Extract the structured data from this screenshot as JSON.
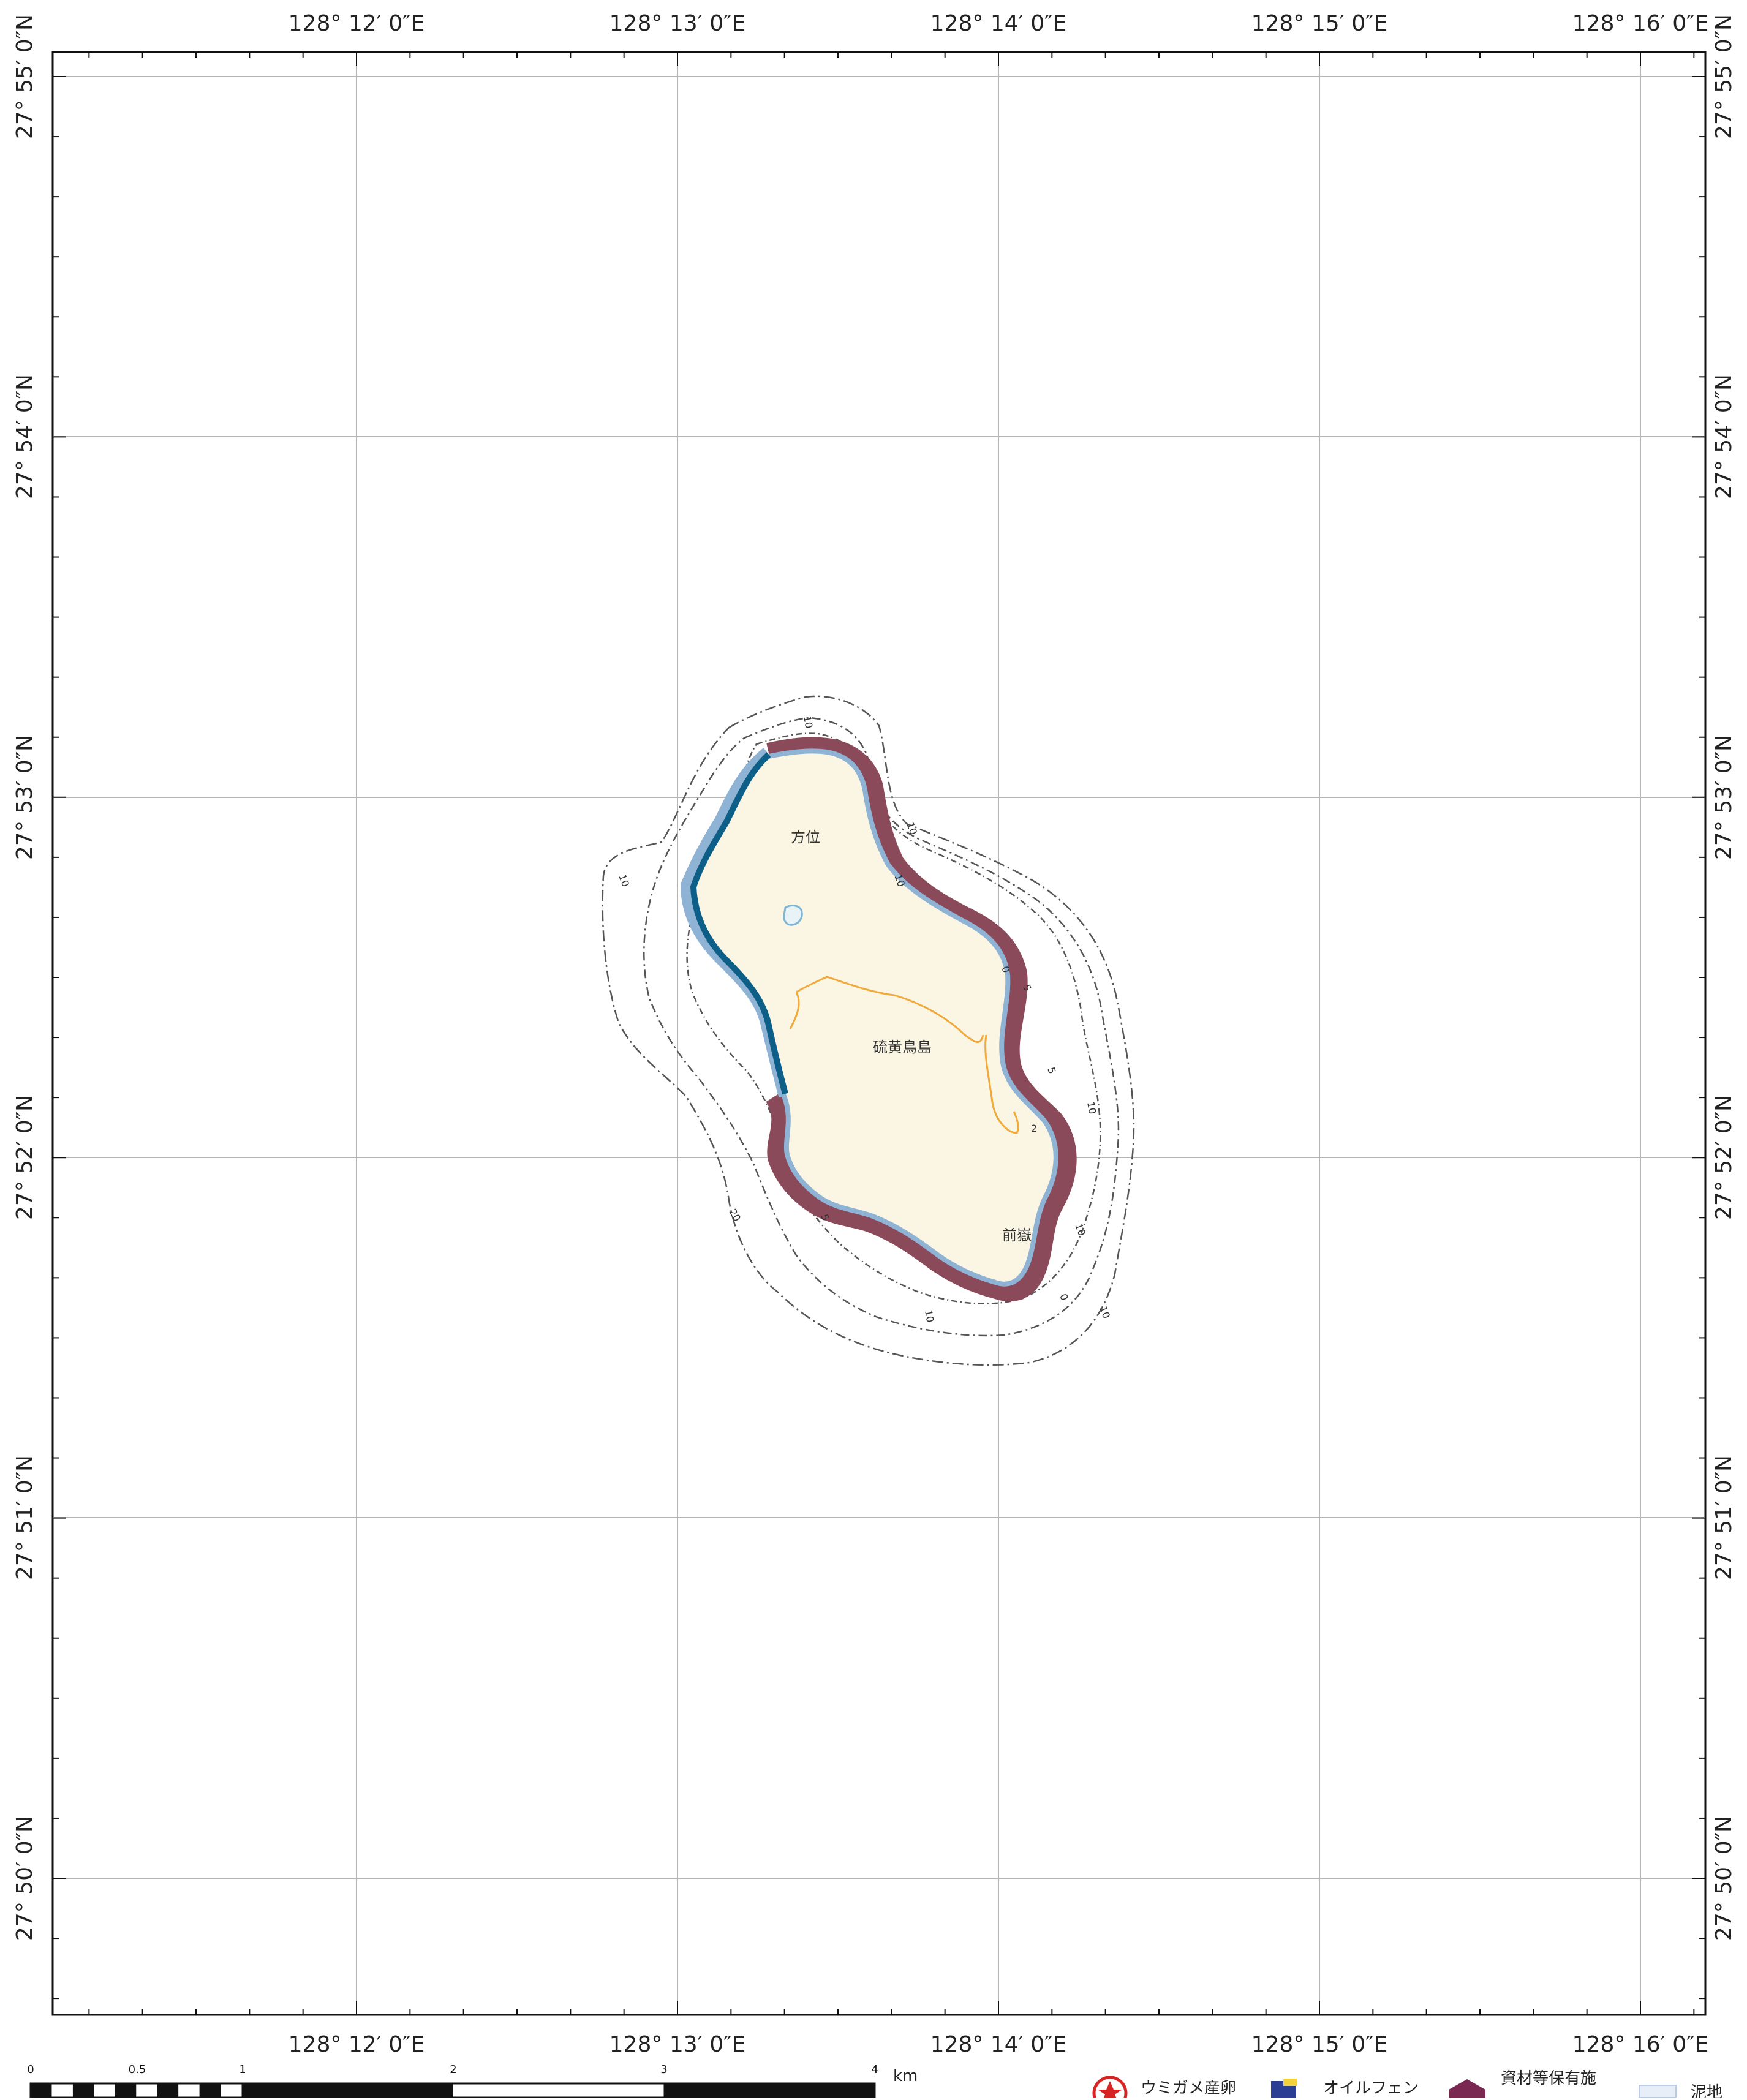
{
  "map": {
    "lon_labels": [
      "128°  12′ 0″E",
      "128°  13′ 0″E",
      "128°  14′ 0″E",
      "128°  15′ 0″E",
      "128°  16′ 0″E"
    ],
    "lat_labels": [
      "27°  55′ 0″N",
      "27°  54′ 0″N",
      "27°  53′ 0″N",
      "27°  52′ 0″N",
      "27°  51′ 0″N",
      "27°  50′ 0″N"
    ],
    "places": {
      "north": "方位",
      "island": "硫黄鳥島",
      "peak": "前嶽"
    },
    "contours": [
      "10",
      "10",
      "10",
      "10",
      "5",
      "5",
      "5",
      "20",
      "10",
      "10",
      "10",
      "10",
      "0",
      "0",
      "2"
    ],
    "colors": {
      "land": "#faf6e3",
      "coast_band": "#8b4a5a",
      "shore_blue": "#8fb3d4",
      "cliff": "#0d5f87",
      "road": "#f2a93b",
      "grid": "#b5b5b5"
    }
  },
  "scale": {
    "ticks": [
      "0",
      "0.5",
      "1",
      "2",
      "3",
      "4"
    ],
    "unit": "km"
  },
  "legend": {
    "items": [
      {
        "label": "ウミガメ産卵",
        "icon": "turtle-icon"
      },
      {
        "label": "オイルフェン",
        "icon": "oil-fence-icon"
      },
      {
        "label": "資材等保有施",
        "icon": "depot-icon"
      },
      {
        "label": "泥地",
        "icon": "mud-swatch"
      }
    ]
  }
}
